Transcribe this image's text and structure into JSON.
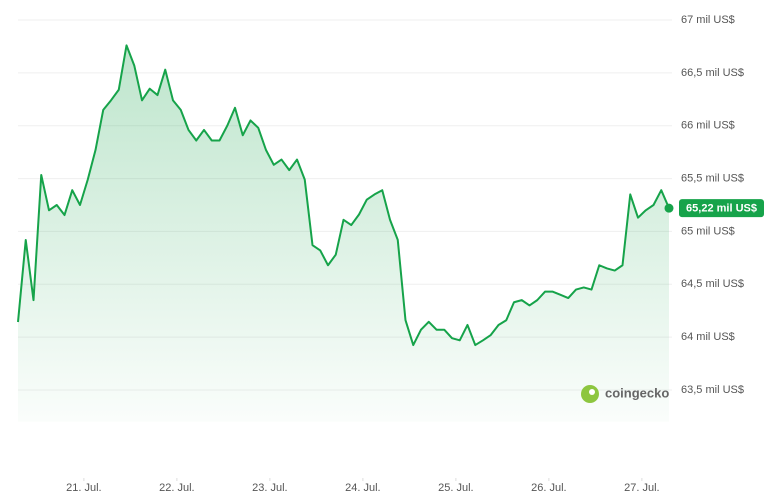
{
  "chart_data": {
    "type": "area",
    "series": [
      {
        "color": "#16a34a",
        "values": [
          64143,
          64919,
          64350,
          65534,
          65200,
          65250,
          65155,
          65390,
          65250,
          65490,
          65770,
          66150,
          66240,
          66340,
          66760,
          66570,
          66240,
          66350,
          66290,
          66530,
          66240,
          66150,
          65960,
          65860,
          65960,
          65860,
          65860,
          66000,
          66170,
          65910,
          66050,
          65980,
          65770,
          65630,
          65680,
          65580,
          65680,
          65490,
          64870,
          64820,
          64680,
          64780,
          65110,
          65060,
          65160,
          65300,
          65350,
          65390,
          65110,
          64920,
          64160,
          63925,
          64070,
          64145,
          64070,
          64070,
          63990,
          63970,
          64115,
          63925,
          63970,
          64020,
          64115,
          64160,
          64330,
          64350,
          64300,
          64350,
          64430,
          64430,
          64400,
          64370,
          64450,
          64470,
          64450,
          64680,
          64650,
          64630,
          64680,
          65350,
          65130,
          65200,
          65250,
          65390,
          65220
        ]
      }
    ],
    "xlim": [
      0,
      84
    ],
    "xticks": [
      {
        "value": 8.5,
        "label": "21. Jul."
      },
      {
        "value": 20.5,
        "label": "22. Jul."
      },
      {
        "value": 32.5,
        "label": "23. Jul."
      },
      {
        "value": 44.5,
        "label": "24. Jul."
      },
      {
        "value": 56.5,
        "label": "25. Jul."
      },
      {
        "value": 68.5,
        "label": "26. Jul."
      },
      {
        "value": 80.5,
        "label": "27. Jul."
      }
    ],
    "ylim": [
      63200,
      67000
    ],
    "yticks": [
      {
        "value": 63500,
        "label": "63,5 mil US$"
      },
      {
        "value": 64000,
        "label": "64 mil US$"
      },
      {
        "value": 64500,
        "label": "64,5 mil US$"
      },
      {
        "value": 65000,
        "label": "65 mil US$"
      },
      {
        "value": 65500,
        "label": "65,5 mil US$"
      },
      {
        "value": 66000,
        "label": "66 mil US$"
      },
      {
        "value": 66500,
        "label": "66,5 mil US$"
      },
      {
        "value": 67000,
        "label": "67 mil US$"
      }
    ],
    "current_price": {
      "value": 65220,
      "label": "65,22 mil US$"
    },
    "watermark": "coingecko",
    "grid": true
  }
}
